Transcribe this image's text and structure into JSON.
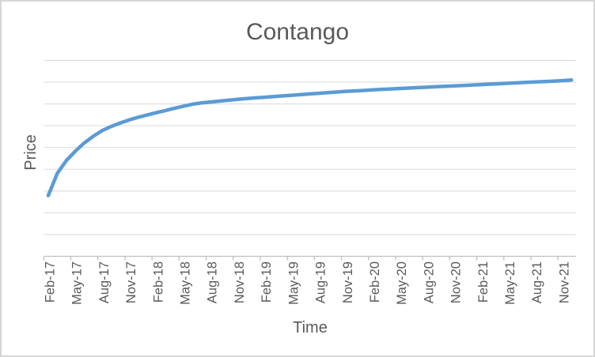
{
  "window": {
    "background": "#ffffff",
    "border_color": "#d6d6d6"
  },
  "chart_data": {
    "type": "line",
    "title": "Contango",
    "xlabel": "Time",
    "ylabel": "Price",
    "legend": "none",
    "grid": "horizontal",
    "y_axis_tick_labels_shown": false,
    "ylim": [
      0,
      9
    ],
    "y_gridline_values": [
      1,
      2,
      3,
      4,
      5,
      6,
      7,
      8,
      9
    ],
    "x_tick_labels": [
      "Feb-17",
      "May-17",
      "Aug-17",
      "Nov-17",
      "Feb-18",
      "May-18",
      "Aug-18",
      "Nov-18",
      "Feb-19",
      "May-19",
      "Aug-19",
      "Nov-19",
      "Feb-20",
      "May-20",
      "Aug-20",
      "Nov-20",
      "Feb-21",
      "May-21",
      "Aug-21",
      "Nov-21"
    ],
    "x": [
      "Feb-17",
      "Mar-17",
      "Apr-17",
      "May-17",
      "Jun-17",
      "Jul-17",
      "Aug-17",
      "Sep-17",
      "Oct-17",
      "Nov-17",
      "Dec-17",
      "Jan-18",
      "Feb-18",
      "Mar-18",
      "Apr-18",
      "May-18",
      "Jun-18",
      "Jul-18",
      "Aug-18",
      "Sep-18",
      "Oct-18",
      "Nov-18",
      "Dec-18",
      "Jan-19",
      "Feb-19",
      "Mar-19",
      "Apr-19",
      "May-19",
      "Jun-19",
      "Jul-19",
      "Aug-19",
      "Sep-19",
      "Oct-19",
      "Nov-19",
      "Dec-19",
      "Jan-20",
      "Feb-20",
      "Mar-20",
      "Apr-20",
      "May-20",
      "Jun-20",
      "Jul-20",
      "Aug-20",
      "Sep-20",
      "Oct-20",
      "Nov-20",
      "Dec-20",
      "Jan-21",
      "Feb-21",
      "Mar-21",
      "Apr-21",
      "May-21",
      "Jun-21",
      "Jul-21",
      "Aug-21",
      "Sep-21",
      "Oct-21",
      "Nov-21",
      "Dec-21"
    ],
    "series": [
      {
        "name": "Price",
        "color": "#5b9bd5",
        "values": [
          2.79,
          3.81,
          4.4,
          4.83,
          5.21,
          5.52,
          5.78,
          5.97,
          6.13,
          6.27,
          6.39,
          6.5,
          6.6,
          6.7,
          6.8,
          6.9,
          6.99,
          7.05,
          7.09,
          7.13,
          7.17,
          7.21,
          7.25,
          7.28,
          7.31,
          7.34,
          7.37,
          7.4,
          7.43,
          7.46,
          7.49,
          7.52,
          7.55,
          7.58,
          7.6,
          7.62,
          7.65,
          7.67,
          7.69,
          7.71,
          7.73,
          7.75,
          7.77,
          7.79,
          7.81,
          7.83,
          7.85,
          7.87,
          7.89,
          7.91,
          7.93,
          7.95,
          7.97,
          7.99,
          8.01,
          8.03,
          8.05,
          8.07,
          8.1
        ]
      }
    ],
    "styles": {
      "gridline_color": "#d9d9d9",
      "axis_color": "#bfbfbf",
      "text_color": "#595959",
      "line_width": 4.5
    }
  }
}
